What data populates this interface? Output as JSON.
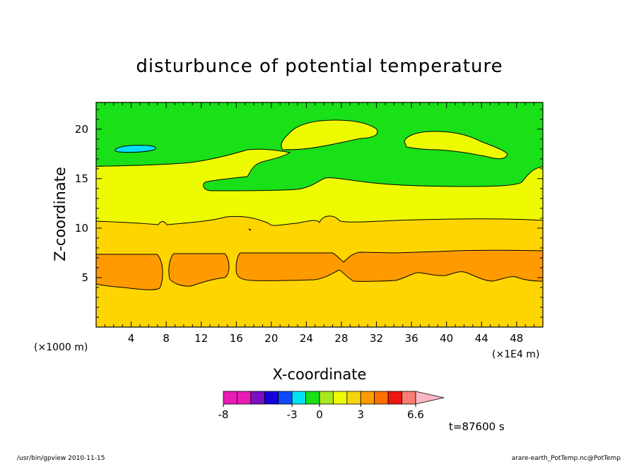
{
  "chart_data": {
    "type": "contour",
    "title": "disturbunce of potential temperature",
    "xlabel": "X-coordinate",
    "ylabel": "Z-coordinate",
    "x_unit_left": "(×1000 m)",
    "x_unit_right": "(×1E4 m)",
    "xlim": [
      0,
      51
    ],
    "ylim": [
      0,
      22.7
    ],
    "x_ticks": [
      4,
      8,
      12,
      16,
      20,
      24,
      28,
      32,
      36,
      40,
      44,
      48
    ],
    "y_ticks": [
      5,
      10,
      15,
      20
    ],
    "levels": [
      -8,
      -3,
      0,
      3,
      6.6
    ],
    "colorbar_labels": [
      "-8",
      "-3",
      "0",
      "3",
      "6.6"
    ],
    "colorbar_colors": [
      "#e81bb5",
      "#e81bb5",
      "#7b0fc2",
      "#1400d8",
      "#0f4bf5",
      "#00e1f7",
      "#19e017",
      "#a6e81d",
      "#eefb00",
      "#f7d50c",
      "#ff9b00",
      "#ff6f00",
      "#ee1710",
      "#fa7c72"
    ],
    "colorbar_arrow_color": "#fab7c3",
    "fill_colors": {
      "band_1_positive": "#ffd500",
      "band_2_positive": "#ff9b00",
      "band_0_positive": "#eefb00",
      "band_0_negative": "#19e017",
      "band_negative_2": "#00e1f7"
    },
    "time_label": "t=87600 s"
  },
  "footer": {
    "left": "/usr/bin/gpview   2010-11-15",
    "right": "arare-earth_PotTemp.nc@PotTemp"
  }
}
